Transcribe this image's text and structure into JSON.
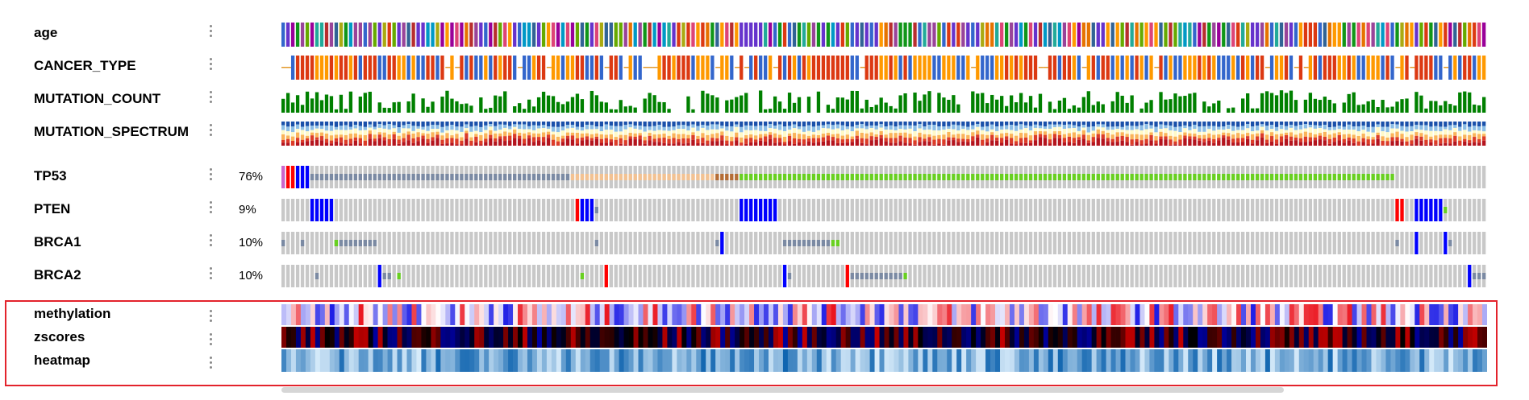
{
  "clinical_tracks": [
    {
      "label": "age",
      "type": "categorical"
    },
    {
      "label": "CANCER_TYPE",
      "type": "categorical"
    },
    {
      "label": "MUTATION_COUNT",
      "type": "bar"
    },
    {
      "label": "MUTATION_SPECTRUM",
      "type": "stacked"
    }
  ],
  "gene_tracks": [
    {
      "gene": "TP53",
      "altered_pct": "76%"
    },
    {
      "gene": "PTEN",
      "altered_pct": "9%"
    },
    {
      "gene": "BRCA1",
      "altered_pct": "10%"
    },
    {
      "gene": "BRCA2",
      "altered_pct": "10%"
    }
  ],
  "heatmap_tracks": [
    {
      "label": "methylation",
      "scheme": "blue-white-red"
    },
    {
      "label": "zscores",
      "scheme": "blue-black-red"
    },
    {
      "label": "heatmap",
      "scheme": "blues"
    }
  ],
  "colors": {
    "unaltered": "#c8c8c8",
    "missense": "#008000",
    "truncating": "#000000",
    "deep_deletion": "#0000ff",
    "amplification": "#ff0000",
    "mutation_count": "#008000",
    "highlight_border": "#e3232c"
  },
  "icons": {
    "track_menu": "vertical-ellipsis-icon"
  }
}
